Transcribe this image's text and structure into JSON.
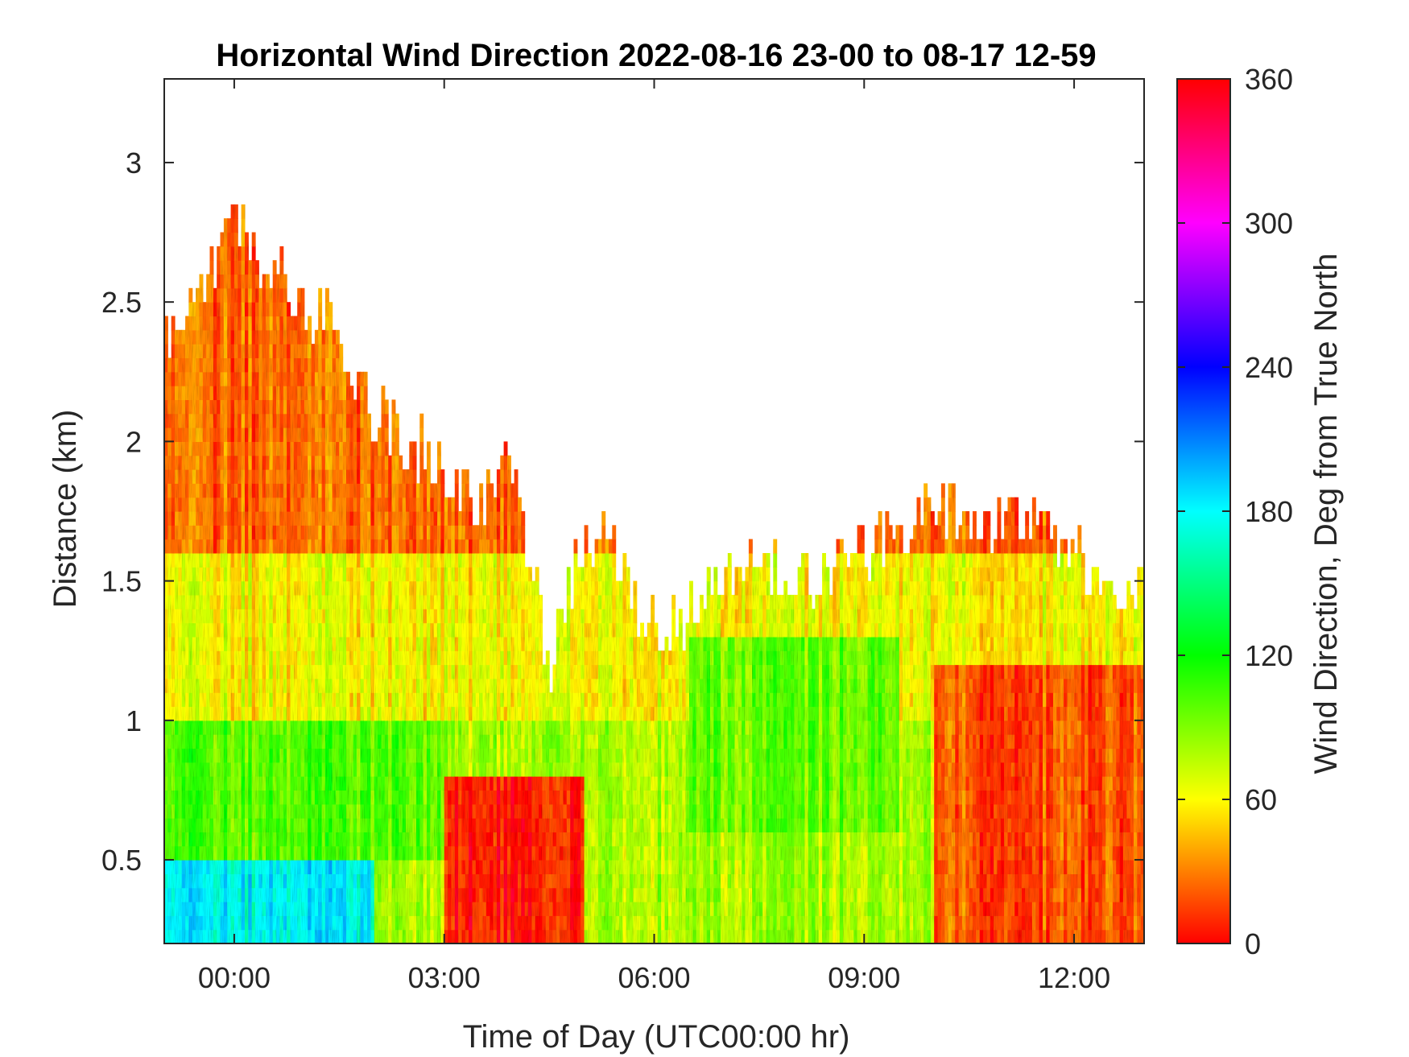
{
  "chart_data": {
    "type": "heatmap",
    "title": "Horizontal Wind Direction 2022-08-16 23-00 to 08-17 12-59",
    "xlabel": "Time of Day (UTC00:00 hr)",
    "ylabel": "Distance (km)",
    "xlim": [
      -1.0,
      13.0
    ],
    "ylim": [
      0.2,
      3.3
    ],
    "x_ticks": [
      0,
      3,
      6,
      9,
      12
    ],
    "x_tick_labels": [
      "00:00",
      "03:00",
      "06:00",
      "09:00",
      "12:00"
    ],
    "y_ticks": [
      0.5,
      1,
      1.5,
      2,
      2.5,
      3
    ],
    "y_tick_labels": [
      "0.5",
      "1",
      "1.5",
      "2",
      "2.5",
      "3"
    ],
    "colorbar": {
      "label": "Wind Direction, Deg from True North",
      "range": [
        0,
        360
      ],
      "ticks": [
        0,
        60,
        120,
        180,
        240,
        300,
        360
      ],
      "tick_labels": [
        "0",
        "60",
        "120",
        "180",
        "240",
        "300",
        "360"
      ],
      "colormap": "hsv",
      "colors": [
        "#ff0000",
        "#ffff00",
        "#00ff00",
        "#00ffff",
        "#0000ff",
        "#ff00ff",
        "#ff0000"
      ]
    },
    "data_top_km": {
      "x": [
        -1.0,
        -0.5,
        0.0,
        0.5,
        1.0,
        1.5,
        2.0,
        2.5,
        3.0,
        3.5,
        4.0,
        4.5,
        5.0,
        5.5,
        6.0,
        6.5,
        7.0,
        7.5,
        8.0,
        8.5,
        9.0,
        9.5,
        10.0,
        10.5,
        11.0,
        11.5,
        12.0,
        12.5,
        13.0
      ],
      "y": [
        2.4,
        2.5,
        2.85,
        2.6,
        2.5,
        2.4,
        2.1,
        2.0,
        1.9,
        1.8,
        1.9,
        1.2,
        1.7,
        1.6,
        1.3,
        1.4,
        1.5,
        1.6,
        1.5,
        1.55,
        1.6,
        1.65,
        1.8,
        1.75,
        1.7,
        1.7,
        1.6,
        1.5,
        1.5
      ]
    },
    "grid": false,
    "direction_bands": [
      {
        "height_range_km": [
          0.2,
          0.5
        ],
        "direction_deg": 180,
        "time_range_hr": [
          -1.0,
          2.0
        ]
      },
      {
        "height_range_km": [
          0.5,
          1.0
        ],
        "direction_deg": 100,
        "time_range_hr": [
          -1.0,
          3.0
        ]
      },
      {
        "height_range_km": [
          1.0,
          1.6
        ],
        "direction_deg": 60,
        "time_range_hr": [
          -1.0,
          13.0
        ]
      },
      {
        "height_range_km": [
          1.6,
          3.0
        ],
        "direction_deg": 25,
        "time_range_hr": [
          -1.0,
          13.0
        ]
      },
      {
        "height_range_km": [
          0.2,
          0.8
        ],
        "direction_deg": 5,
        "time_range_hr": [
          3.0,
          5.0
        ]
      },
      {
        "height_range_km": [
          0.6,
          1.3
        ],
        "direction_deg": 95,
        "time_range_hr": [
          6.5,
          9.5
        ]
      },
      {
        "height_range_km": [
          0.2,
          1.2
        ],
        "direction_deg": 20,
        "time_range_hr": [
          10.0,
          13.0
        ]
      }
    ]
  }
}
